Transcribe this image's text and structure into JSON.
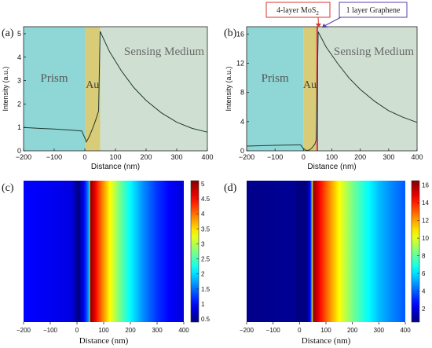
{
  "panels": [
    {
      "id": "a",
      "panel_label": "(a)",
      "chart_data": {
        "type": "line",
        "xlabel": "Distance (nm)",
        "ylabel": "Intensity (a.u.)",
        "xlim": [
          -200,
          400
        ],
        "ylim": [
          0,
          5.3
        ],
        "xticks": [
          -200,
          -100,
          0,
          100,
          200,
          300,
          400
        ],
        "yticks": [
          0,
          1,
          2,
          3,
          4,
          5
        ],
        "regions": [
          {
            "name": "Prism",
            "label": "Prism",
            "x_from": -200,
            "x_to": 0,
            "color": "#8fd6d6"
          },
          {
            "name": "Au",
            "label": "Au",
            "x_from": 0,
            "x_to": 50,
            "color": "#d9cc78"
          },
          {
            "name": "Sensing Medium",
            "label": "Sensing Medium",
            "x_from": 50,
            "x_to": 400,
            "color": "#cfe0d2"
          }
        ],
        "series": [
          {
            "x": [
              -200,
              -150,
              -100,
              -50,
              -10,
              0,
              5,
              15,
              25,
              35,
              45,
              50,
              80,
              120,
              160,
              200,
              250,
              300,
              350,
              400
            ],
            "y": [
              1.0,
              0.96,
              0.93,
              0.89,
              0.85,
              0.55,
              0.38,
              0.62,
              0.95,
              1.3,
              1.7,
              5.1,
              4.25,
              3.4,
              2.7,
              2.15,
              1.62,
              1.22,
              0.96,
              0.8
            ]
          }
        ]
      }
    },
    {
      "id": "b",
      "panel_label": "(b)",
      "chart_data": {
        "type": "line",
        "xlabel": "Distance (nm)",
        "ylabel": "Intensity (a.u.)",
        "xlim": [
          -200,
          400
        ],
        "ylim": [
          0,
          17
        ],
        "xticks": [
          -200,
          -100,
          0,
          100,
          200,
          300,
          400
        ],
        "yticks": [
          0,
          4,
          8,
          12,
          16
        ],
        "regions": [
          {
            "name": "Prism",
            "label": "Prism",
            "x_from": -200,
            "x_to": 0,
            "color": "#8fd6d6"
          },
          {
            "name": "Au",
            "label": "Au",
            "x_from": 0,
            "x_to": 45,
            "color": "#d9cc78"
          },
          {
            "name": "MoS2",
            "label": "",
            "x_from": 45,
            "x_to": 48,
            "color": "#e8402c"
          },
          {
            "name": "Graphene",
            "label": "",
            "x_from": 48,
            "x_to": 52,
            "color": "#7b4fb5"
          },
          {
            "name": "Sensing Medium",
            "label": "Sensing Medium",
            "x_from": 52,
            "x_to": 400,
            "color": "#cfe0d2"
          }
        ],
        "annotations": [
          {
            "text": "4-layer MoS",
            "subscript": "2",
            "color": "#d9342b"
          },
          {
            "text": "1 layer Graphene",
            "color": "#5b3fa8"
          }
        ],
        "series": [
          {
            "x": [
              -200,
              -150,
              -100,
              -50,
              -10,
              0,
              10,
              20,
              30,
              40,
              45,
              52,
              80,
              120,
              160,
              200,
              250,
              300,
              350,
              400
            ],
            "y": [
              0.65,
              0.7,
              0.75,
              0.8,
              0.82,
              0.3,
              0.05,
              0.1,
              0.4,
              0.9,
              1.5,
              16.3,
              14.2,
              12.0,
              10.0,
              8.4,
              6.8,
              5.5,
              4.6,
              3.9
            ]
          }
        ]
      }
    },
    {
      "id": "c",
      "panel_label": "(c)",
      "chart_data": {
        "type": "heatmap",
        "xlabel": "Distance (nm)",
        "xlim": [
          -200,
          400
        ],
        "xticks": [
          -200,
          -100,
          0,
          100,
          200,
          300,
          400
        ],
        "colorbar_range": [
          0.4,
          5.1
        ],
        "colorbar_ticks": [
          "0.5",
          "1",
          "1.5",
          "2",
          "2.5",
          "3",
          "3.5",
          "4",
          "4.5",
          "5"
        ],
        "profile_x": [
          -200,
          -150,
          -100,
          -60,
          -20,
          0,
          5,
          15,
          25,
          35,
          45,
          50,
          80,
          120,
          160,
          200,
          250,
          300,
          350,
          400
        ],
        "profile_v": [
          1.0,
          0.96,
          0.93,
          0.9,
          0.85,
          0.5,
          0.4,
          0.65,
          0.95,
          1.3,
          1.75,
          5.1,
          4.25,
          3.4,
          2.7,
          2.15,
          1.62,
          1.22,
          0.96,
          0.8
        ]
      }
    },
    {
      "id": "d",
      "panel_label": "(d)",
      "chart_data": {
        "type": "heatmap",
        "xlabel": "Distance (nm)",
        "xlim": [
          -200,
          400
        ],
        "xticks": [
          -200,
          -100,
          0,
          100,
          200,
          300,
          400
        ],
        "colorbar_range": [
          0.5,
          16.5
        ],
        "colorbar_ticks": [
          "2",
          "4",
          "6",
          "8",
          "10",
          "12",
          "14",
          "16"
        ],
        "profile_x": [
          -200,
          -150,
          -100,
          -60,
          -20,
          0,
          10,
          20,
          30,
          40,
          45,
          52,
          80,
          120,
          160,
          200,
          250,
          300,
          350,
          400
        ],
        "profile_v": [
          0.65,
          0.7,
          0.75,
          0.8,
          0.82,
          0.3,
          0.1,
          0.3,
          0.8,
          2.5,
          4.5,
          16.3,
          14.2,
          12.0,
          10.0,
          8.4,
          6.8,
          5.5,
          4.6,
          3.9
        ]
      }
    }
  ]
}
